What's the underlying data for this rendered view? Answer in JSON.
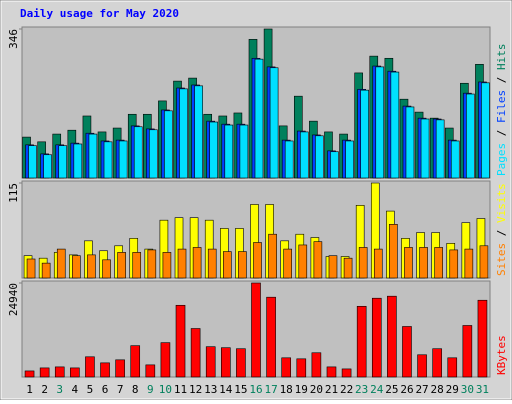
{
  "chart_data": [
    {
      "type": "bar",
      "title": "Daily usage for May 2020",
      "ylim": [
        0,
        346
      ],
      "yticks": [
        346
      ],
      "series": [
        {
          "name": "Hits",
          "color": "#00805c",
          "values": [
            95,
            84,
            102,
            111,
            144,
            107,
            116,
            148,
            148,
            179,
            225,
            232,
            148,
            144,
            151,
            322,
            346,
            121,
            190,
            132,
            107,
            102,
            244,
            283,
            278,
            183,
            153,
            139,
            116,
            220,
            264
          ]
        },
        {
          "name": "Files",
          "color": "#0040ff",
          "values": [
            77,
            56,
            77,
            81,
            104,
            86,
            88,
            121,
            114,
            158,
            209,
            216,
            132,
            125,
            125,
            278,
            258,
            88,
            109,
            100,
            63,
            88,
            206,
            260,
            248,
            167,
            139,
            137,
            88,
            197,
            223
          ]
        },
        {
          "name": "Pages",
          "color": "#00e0ff",
          "values": [
            75,
            54,
            75,
            79,
            102,
            84,
            86,
            119,
            112,
            156,
            207,
            214,
            130,
            123,
            123,
            276,
            256,
            86,
            107,
            98,
            61,
            86,
            204,
            258,
            246,
            165,
            137,
            135,
            86,
            195,
            221
          ]
        }
      ]
    },
    {
      "type": "bar",
      "ylim": [
        0,
        115
      ],
      "yticks": [
        115
      ],
      "series": [
        {
          "name": "Visits",
          "color": "#ffff00",
          "values": [
            27,
            24,
            31,
            28,
            45,
            33,
            39,
            48,
            35,
            70,
            73,
            73,
            70,
            60,
            60,
            89,
            89,
            45,
            53,
            49,
            26,
            26,
            88,
            115,
            81,
            48,
            55,
            55,
            42,
            67,
            72
          ]
        },
        {
          "name": "Sites",
          "color": "#ff8000",
          "values": [
            23,
            18,
            35,
            27,
            28,
            22,
            31,
            31,
            34,
            31,
            35,
            37,
            35,
            32,
            32,
            43,
            53,
            35,
            40,
            44,
            27,
            24,
            37,
            35,
            65,
            37,
            37,
            37,
            34,
            35,
            39
          ]
        }
      ]
    },
    {
      "type": "bar",
      "ylim": [
        0,
        24940
      ],
      "yticks": [
        24940
      ],
      "categories": [
        "1",
        "2",
        "3",
        "4",
        "5",
        "6",
        "7",
        "8",
        "9",
        "10",
        "11",
        "12",
        "13",
        "14",
        "15",
        "16",
        "17",
        "18",
        "19",
        "20",
        "21",
        "22",
        "23",
        "24",
        "25",
        "26",
        "27",
        "28",
        "29",
        "30",
        "31"
      ],
      "category_colors": [
        "#000000",
        "#000000",
        "#00805c",
        "#000000",
        "#000000",
        "#000000",
        "#000000",
        "#000000",
        "#00805c",
        "#00805c",
        "#000000",
        "#000000",
        "#000000",
        "#000000",
        "#000000",
        "#00805c",
        "#00805c",
        "#000000",
        "#000000",
        "#000000",
        "#000000",
        "#000000",
        "#00805c",
        "#00805c",
        "#000000",
        "#000000",
        "#000000",
        "#000000",
        "#000000",
        "#00805c",
        "#00805c"
      ],
      "series": [
        {
          "name": "KBytes",
          "color": "#ff0000",
          "values": [
            1608,
            2412,
            2680,
            2412,
            5360,
            3752,
            4556,
            8308,
            3216,
            9112,
            19028,
            12864,
            8040,
            7772,
            7504,
            24940,
            21172,
            5092,
            4824,
            6432,
            2680,
            2144,
            18760,
            20904,
            21440,
            13400,
            5896,
            7504,
            5092,
            13668,
            20368
          ]
        }
      ]
    }
  ]
}
